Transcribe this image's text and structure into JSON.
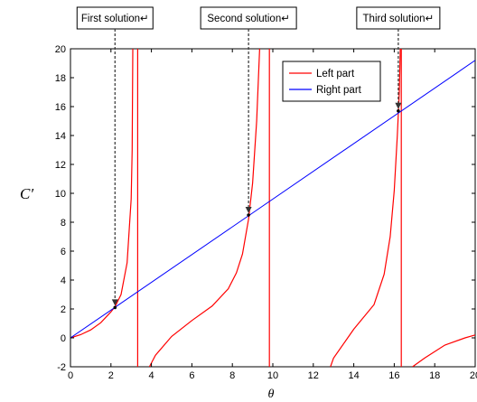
{
  "chart_data": {
    "type": "line",
    "title": "",
    "xlabel": "θ",
    "ylabel": "C′",
    "xlim": [
      0,
      20
    ],
    "ylim": [
      -2,
      20
    ],
    "xticks": [
      "0",
      "2",
      "4",
      "6",
      "8",
      "10",
      "12",
      "14",
      "16",
      "18",
      "20"
    ],
    "yticks": [
      "-2",
      "0",
      "2",
      "4",
      "6",
      "8",
      "10",
      "12",
      "14",
      "16",
      "18",
      "20"
    ],
    "grid": false,
    "legend_position": "top-right",
    "series": [
      {
        "name": "Left part",
        "color": "#ff0000",
        "branches": [
          {
            "x": [
              0.0,
              0.5,
              1.0,
              1.5,
              2.0,
              2.2,
              2.5,
              2.8,
              3.0,
              3.05,
              3.08
            ],
            "y": [
              0.0,
              0.22,
              0.55,
              1.05,
              1.8,
              2.15,
              3.0,
              5.2,
              9.6,
              13.0,
              20.0
            ]
          },
          {
            "x": [
              3.32,
              3.32
            ],
            "y": [
              -2,
              20
            ]
          },
          {
            "x": [
              3.9,
              4.2,
              5.0,
              6.0,
              7.0,
              7.8,
              8.2,
              8.5,
              8.8,
              9.0,
              9.2,
              9.35
            ],
            "y": [
              -2.0,
              -1.2,
              0.1,
              1.2,
              2.2,
              3.4,
              4.5,
              5.8,
              8.2,
              10.7,
              15.0,
              20.0
            ]
          },
          {
            "x": [
              9.83,
              9.83
            ],
            "y": [
              -2,
              20
            ]
          },
          {
            "x": [
              12.85,
              13.0,
              14.0,
              15.0,
              15.5,
              15.8,
              16.0,
              16.15,
              16.25,
              16.3
            ],
            "y": [
              -2.0,
              -1.4,
              0.6,
              2.3,
              4.4,
              7.0,
              10.2,
              14.0,
              17.0,
              20.0
            ]
          },
          {
            "x": [
              16.35,
              16.35
            ],
            "y": [
              -2,
              20
            ]
          },
          {
            "x": [
              16.9,
              17.5,
              18.5,
              19.5,
              20.0
            ],
            "y": [
              -2.0,
              -1.4,
              -0.5,
              0.0,
              0.2
            ]
          }
        ]
      },
      {
        "name": "Right part",
        "color": "#0000ff",
        "x": [
          0,
          20
        ],
        "y": [
          0,
          19.2
        ]
      }
    ],
    "solutions": [
      {
        "label": "First solution↵",
        "x": 2.2,
        "y": 2.1
      },
      {
        "label": "Second solution↵",
        "x": 8.8,
        "y": 8.5
      },
      {
        "label": "Third solution↵",
        "x": 16.2,
        "y": 15.7
      }
    ]
  }
}
